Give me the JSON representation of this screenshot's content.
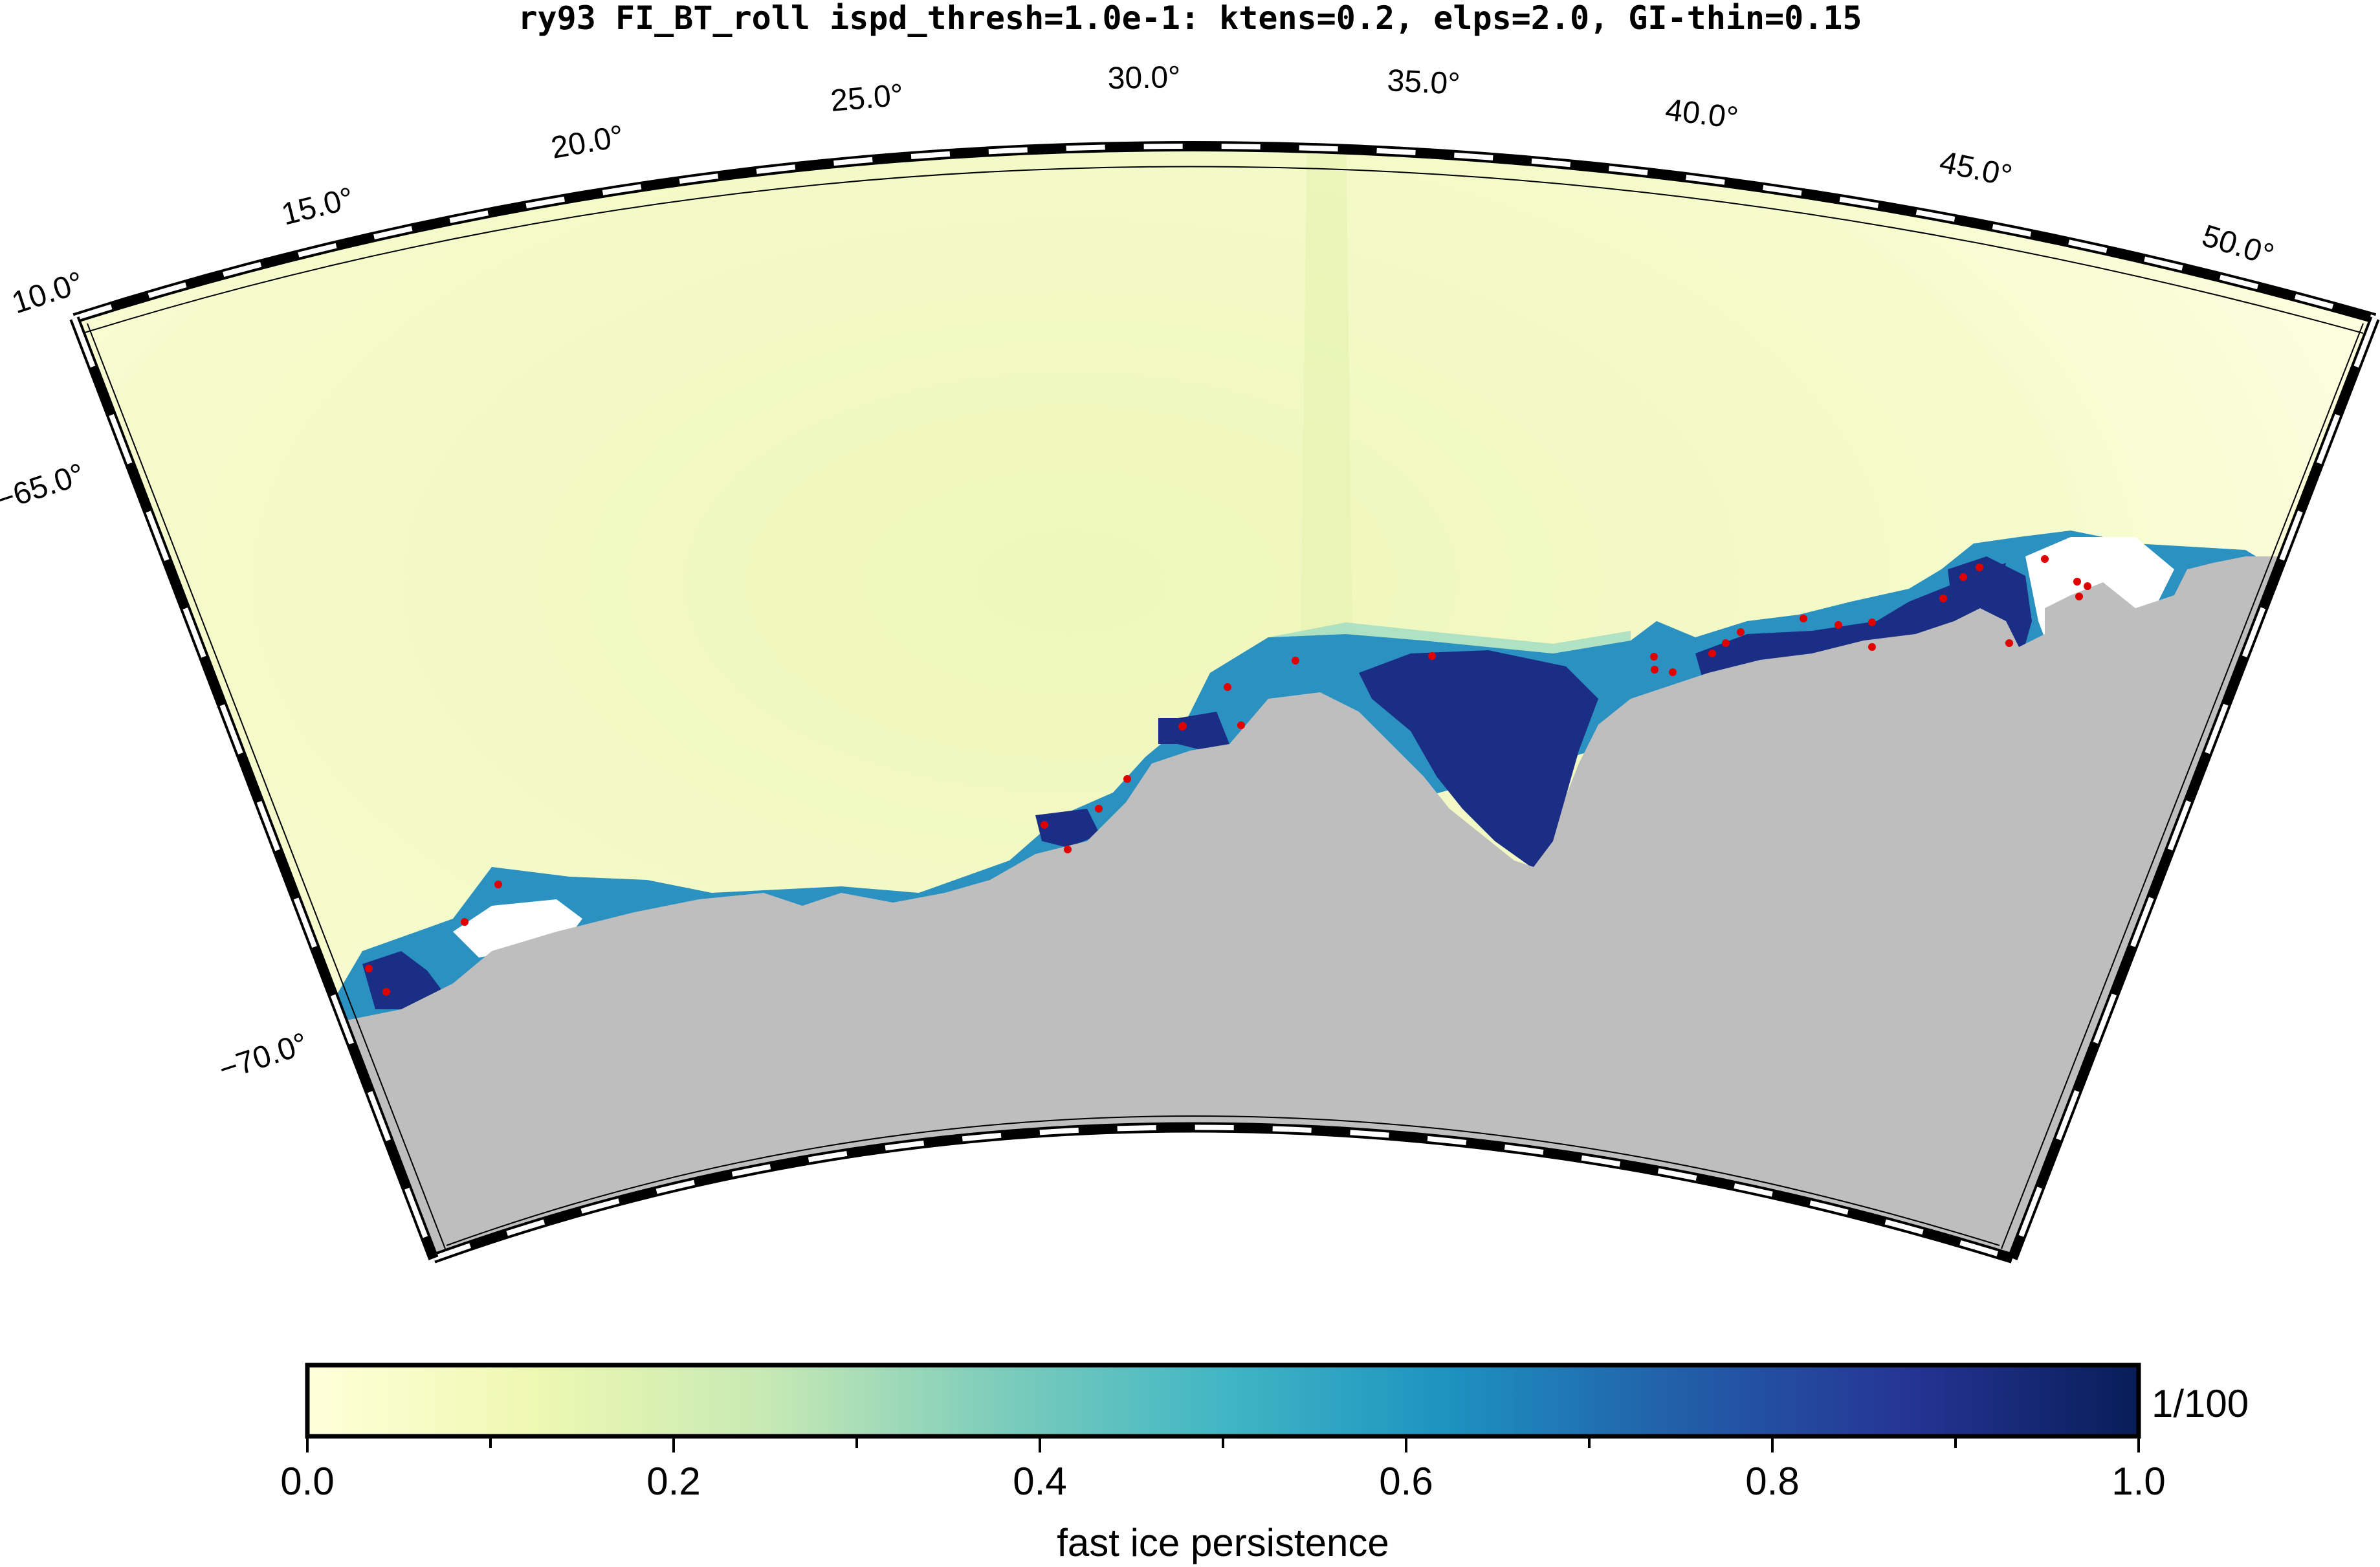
{
  "title": "ry93 FI_BT_roll ispd_thresh=1.0e-1: ktens=0.2, elps=2.0, GI-thin=0.15",
  "map": {
    "longitude_labels": [
      "10.0°",
      "15.0°",
      "20.0°",
      "25.0°",
      "30.0°",
      "35.0°",
      "40.0°",
      "45.0°",
      "50.0°"
    ],
    "latitude_labels": [
      "−65.0°",
      "−70.0°"
    ],
    "colors": {
      "ocean_low": "#fefee0",
      "ocean_mid": "#ebf6b7",
      "land": "#bebebe",
      "fast_ice_high": "#1b2e85",
      "fast_ice_mid": "#2a91c1",
      "grounded_iceberg_marker": "#e00000"
    }
  },
  "colorbar": {
    "label": "fast ice persistence",
    "multiplier": "1/100",
    "tick_labels": [
      "0.0",
      "0.2",
      "0.4",
      "0.6",
      "0.8",
      "1.0"
    ],
    "range": [
      0.0,
      1.0
    ],
    "colormap_stops": [
      "#ffffd9",
      "#edf8b1",
      "#c7e9b4",
      "#7fcdbb",
      "#41b6c4",
      "#1d91c0",
      "#225ea8",
      "#253494",
      "#081d58"
    ]
  }
}
